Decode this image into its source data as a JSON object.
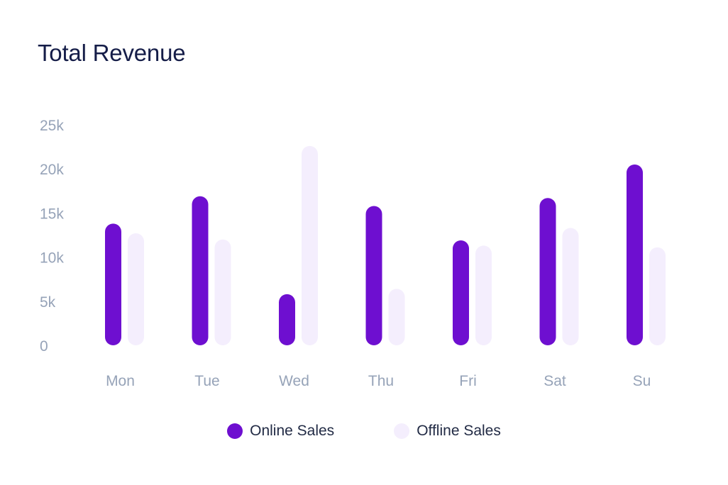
{
  "chart_data": {
    "type": "bar",
    "title": "Total Revenue",
    "categories": [
      "Mon",
      "Tue",
      "Wed",
      "Thu",
      "Fri",
      "Sat",
      "Su"
    ],
    "series": [
      {
        "name": "Online Sales",
        "color": "#6e0fd0",
        "values": [
          13800,
          16900,
          5800,
          15800,
          11900,
          16700,
          20500
        ]
      },
      {
        "name": "Offline Sales",
        "color": "#f4eefd",
        "values": [
          12700,
          12000,
          22600,
          6400,
          11300,
          13300,
          11100
        ]
      }
    ],
    "ylim": [
      0,
      25000
    ],
    "yticks": [
      0,
      5000,
      10000,
      15000,
      20000,
      25000
    ],
    "ytick_labels": [
      "0",
      "5k",
      "10k",
      "15k",
      "20k",
      "25k"
    ],
    "xlabel": "",
    "ylabel": "",
    "grid": false,
    "legend": "bottom-center"
  }
}
